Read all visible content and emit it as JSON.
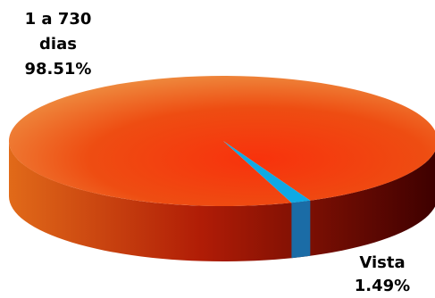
{
  "chart_data": {
    "type": "pie",
    "title": "",
    "categories": [
      "1 a 730 dias",
      "Vista"
    ],
    "values": [
      98.51,
      1.49
    ],
    "labels": [
      {
        "lines": [
          "1 a 730",
          "dias",
          "98.51%"
        ]
      },
      {
        "lines": [
          "Vista",
          "1.49%"
        ]
      }
    ],
    "colors": {
      "major_top_center": "#f8320c",
      "major_top_edge": "#ee9546",
      "major_side_light": "#e16a19",
      "major_side_dark": "#3d0000",
      "minor_top": "#0fa9e5",
      "minor_side": "#1b6ca6"
    },
    "legend": "none",
    "grid": false
  }
}
